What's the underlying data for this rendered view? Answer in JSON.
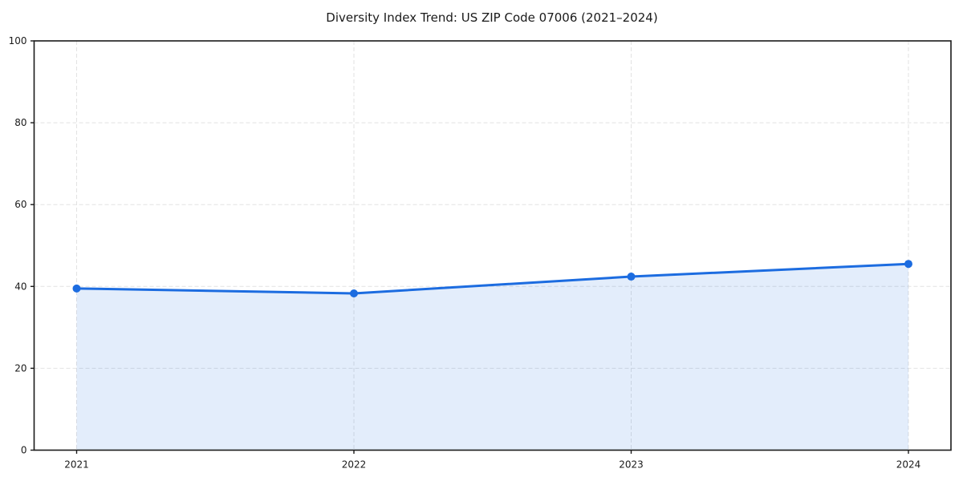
{
  "chart_data": {
    "type": "line",
    "title": "Diversity Index Trend: US ZIP Code 07006 (2021–2024)",
    "categories": [
      "2021",
      "2022",
      "2023",
      "2024"
    ],
    "series": [
      {
        "name": "Diversity Index",
        "values": [
          39.5,
          38.3,
          42.4,
          45.5
        ]
      }
    ],
    "xlabel": "",
    "ylabel": "",
    "ylim": [
      0,
      100
    ],
    "yticks": [
      0,
      20,
      40,
      60,
      80,
      100
    ],
    "grid": true,
    "grid_style": "dashed",
    "legend_position": "none",
    "area_fill": true,
    "marker": "circle",
    "colors": {
      "line": "#1c6ce0",
      "marker": "#1c6ce0",
      "fill": "#1c6ce0",
      "fill_opacity": 0.12,
      "grid": "#e2e2e2",
      "spine": "#1a1a1a",
      "tick_text": "#1a1a1a"
    }
  }
}
